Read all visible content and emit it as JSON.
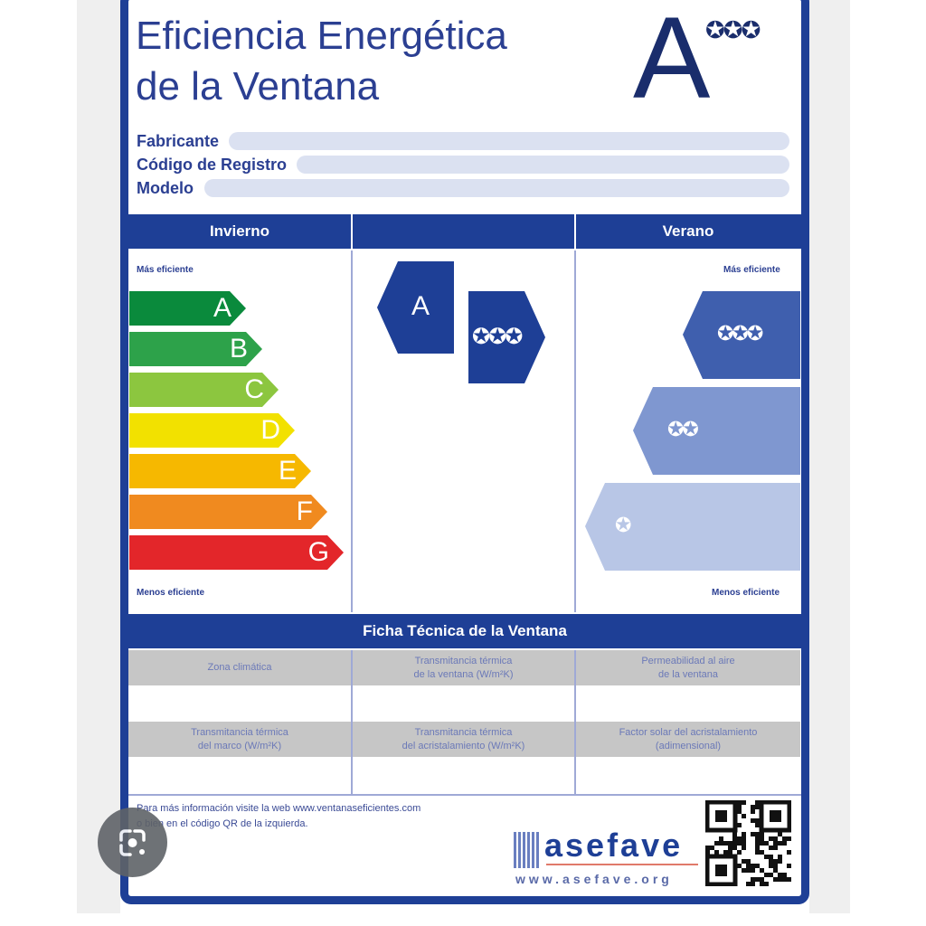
{
  "label": {
    "title_line1": "Eficiencia Energética",
    "title_line2": "de la Ventana",
    "rating_letter": "A",
    "rating_stars": "✪✪✪",
    "fields": [
      "Fabricante",
      "Código de Registro",
      "Modelo"
    ],
    "winter_label": "Invierno",
    "summer_label": "Verano",
    "more_efficient": "Más eficiente",
    "less_efficient": "Menos eficiente",
    "winter_classes": [
      {
        "letter": "A",
        "color": "#0a8a3c"
      },
      {
        "letter": "B",
        "color": "#2da24a"
      },
      {
        "letter": "C",
        "color": "#8cc63f"
      },
      {
        "letter": "D",
        "color": "#f2e100"
      },
      {
        "letter": "E",
        "color": "#f6b800"
      },
      {
        "letter": "F",
        "color": "#f08a1f"
      },
      {
        "letter": "G",
        "color": "#e3262a"
      }
    ],
    "winter_indicator": "A",
    "summer_indicator": "✪✪✪",
    "summer_classes": [
      {
        "stars": "✪✪✪",
        "color": "#3f5fae"
      },
      {
        "stars": "✪✪",
        "color": "#7f97d0"
      },
      {
        "stars": "✪",
        "color": "#b8c6e6"
      }
    ],
    "tech_sheet_title": "Ficha Técnica de la Ventana",
    "tech_row1": [
      "Zona climática",
      "Transmitancia térmica\nde la ventana (W/m²K)",
      "Permeabilidad al aire\nde la ventana"
    ],
    "tech_row2": [
      "Transmitancia térmica\ndel marco (W/m²K)",
      "Transmitancia térmica\ndel acristalamiento (W/m²K)",
      "Factor solar del acristalamiento\n(adimensional)"
    ],
    "footer_line1": "Para más información visite la web www.ventanaseficientes.com",
    "footer_line2": "o bien en el código QR de la izquierda.",
    "logo_text": "asefave",
    "logo_url": "www.asefave.org",
    "brand_color": "#1e3f96"
  }
}
